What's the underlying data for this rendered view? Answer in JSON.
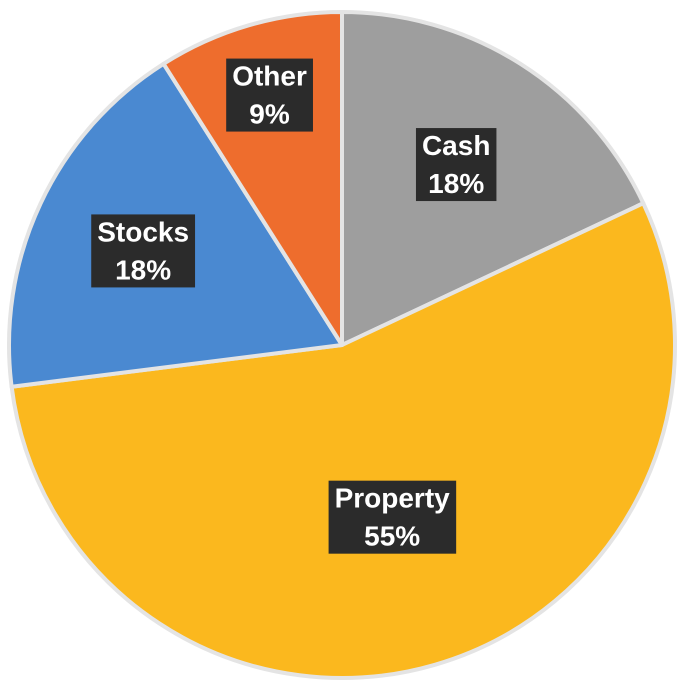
{
  "chart_data": {
    "type": "pie",
    "slices": [
      {
        "label": "Cash",
        "value": 18,
        "value_label": "18%",
        "color": "#9e9e9e"
      },
      {
        "label": "Property",
        "value": 55,
        "value_label": "55%",
        "color": "#fbb81e"
      },
      {
        "label": "Stocks",
        "value": 18,
        "value_label": "18%",
        "color": "#4a89d1"
      },
      {
        "label": "Other",
        "value": 9,
        "value_label": "9%",
        "color": "#ee6d2d"
      }
    ],
    "data_labels": "inside",
    "slice_border_color": "#e4e4e4",
    "label_background": "#2b2b2b",
    "label_text_color": "#ffffff",
    "legend": "none",
    "start_angle": "12 o'clock",
    "direction": "clockwise"
  }
}
